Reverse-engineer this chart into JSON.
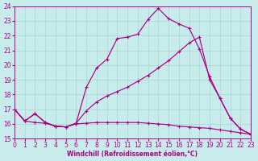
{
  "xlabel": "Windchill (Refroidissement éolien,°C)",
  "background_color": "#c8ecec",
  "grid_color": "#aad4d4",
  "line_color": "#aa0088",
  "xlim": [
    0,
    23
  ],
  "ylim": [
    15,
    24
  ],
  "yticks": [
    15,
    16,
    17,
    18,
    19,
    20,
    21,
    22,
    23,
    24
  ],
  "xticks": [
    0,
    1,
    2,
    3,
    4,
    5,
    6,
    7,
    8,
    9,
    10,
    11,
    12,
    13,
    14,
    15,
    16,
    17,
    18,
    19,
    20,
    21,
    22,
    23
  ],
  "series": [
    {
      "x": [
        0,
        1,
        2,
        3,
        4,
        5,
        6,
        7,
        8,
        9,
        10,
        11,
        12,
        13,
        14,
        15,
        16,
        17,
        18,
        19,
        20,
        21,
        22,
        23
      ],
      "y": [
        17.0,
        16.2,
        16.7,
        16.1,
        15.85,
        15.8,
        16.05,
        18.5,
        19.8,
        20.4,
        21.8,
        21.9,
        22.1,
        23.1,
        23.85,
        23.15,
        22.8,
        22.5,
        21.1,
        19.2,
        17.75,
        16.4,
        15.65,
        15.3
      ]
    },
    {
      "x": [
        0,
        1,
        2,
        3,
        4,
        5,
        6,
        7,
        8,
        9,
        10,
        11,
        12,
        13,
        14,
        15,
        16,
        17,
        18,
        19,
        20,
        21,
        22,
        23
      ],
      "y": [
        17.0,
        16.2,
        16.7,
        16.1,
        15.85,
        15.8,
        16.05,
        16.9,
        17.5,
        17.9,
        18.2,
        18.5,
        18.9,
        19.3,
        19.8,
        20.3,
        20.9,
        21.5,
        21.9,
        19.0,
        17.75,
        16.4,
        15.65,
        15.3
      ]
    },
    {
      "x": [
        0,
        1,
        2,
        3,
        4,
        5,
        6,
        7,
        8,
        9,
        10,
        11,
        12,
        13,
        14,
        15,
        16,
        17,
        18,
        19,
        20,
        21,
        22,
        23
      ],
      "y": [
        17.0,
        16.2,
        16.1,
        16.05,
        15.85,
        15.8,
        16.0,
        16.05,
        16.1,
        16.1,
        16.1,
        16.1,
        16.1,
        16.05,
        16.0,
        15.95,
        15.85,
        15.8,
        15.75,
        15.7,
        15.6,
        15.5,
        15.4,
        15.3
      ]
    }
  ]
}
